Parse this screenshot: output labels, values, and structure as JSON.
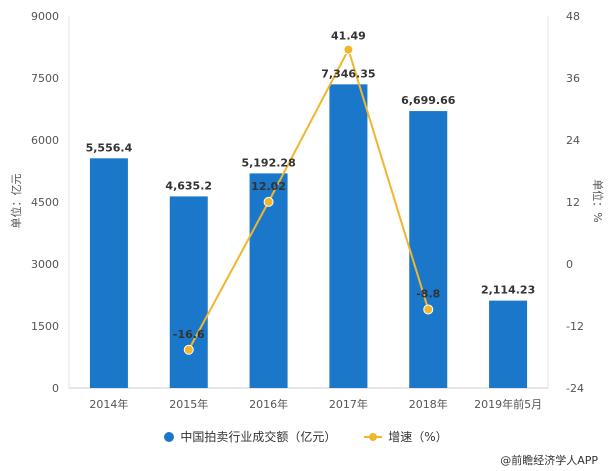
{
  "chart_data": {
    "type": "bar+line",
    "categories": [
      "2014年",
      "2015年",
      "2016年",
      "2017年",
      "2018年",
      "2019年前5月"
    ],
    "series": [
      {
        "name": "中国拍卖行业成交额（亿元）",
        "type": "bar",
        "values": [
          5556.4,
          4635.2,
          5192.28,
          7346.35,
          6699.66,
          2114.23
        ],
        "labels": [
          "5,556.4",
          "4,635.2",
          "5,192.28",
          "7,346.35",
          "6,699.66",
          "2,114.23"
        ],
        "color": "#1a77c9"
      },
      {
        "name": "增速（%）",
        "type": "line",
        "values": [
          null,
          -16.6,
          12.02,
          41.49,
          -8.8,
          null
        ],
        "labels": [
          "",
          "-16.6",
          "12.02",
          "41.49",
          "-8.8",
          ""
        ],
        "color": "#f0b62e"
      }
    ],
    "y_left": {
      "label": "单位：亿元",
      "ylim": [
        0,
        9000
      ],
      "ticks": [
        "0",
        "1500",
        "3000",
        "4500",
        "6000",
        "7500",
        "9000"
      ]
    },
    "y_right": {
      "label": "单位：%",
      "ylim": [
        -24,
        48
      ],
      "ticks": [
        "-24",
        "-12",
        "0",
        "12",
        "24",
        "36",
        "48"
      ]
    },
    "legend_position": "bottom"
  },
  "source": "@前瞻经济学人APP"
}
